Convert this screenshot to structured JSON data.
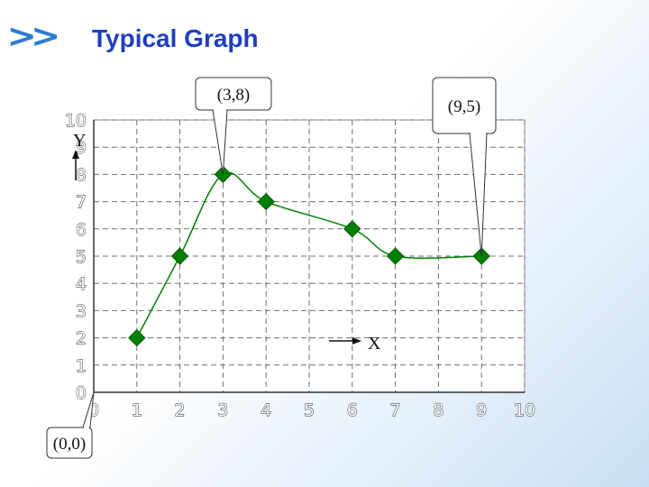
{
  "slide": {
    "marker": ">>",
    "title": "Typical Graph"
  },
  "chart_data": {
    "type": "line",
    "title": "Typical Graph",
    "xlim": [
      0,
      10
    ],
    "ylim": [
      0,
      10
    ],
    "x_ticks": [
      0,
      1,
      2,
      3,
      4,
      5,
      6,
      7,
      8,
      9,
      10
    ],
    "y_ticks": [
      0,
      1,
      2,
      3,
      4,
      5,
      6,
      7,
      8,
      9,
      10
    ],
    "grid": true,
    "grid_style": "dashed",
    "smooth": true,
    "series": [
      {
        "x": [
          1,
          2,
          3,
          4,
          6,
          7,
          9
        ],
        "y": [
          2,
          5,
          8,
          7,
          6,
          5,
          5
        ],
        "color": "#008000",
        "marker": "diamond"
      }
    ],
    "axis_labels": {
      "x": "X",
      "y": "Y"
    },
    "callouts": [
      {
        "text": "(3,8)",
        "x": 3,
        "y": 8
      },
      {
        "text": "(9,5)",
        "x": 9,
        "y": 5
      },
      {
        "text": "(0,0)",
        "x": 0,
        "y": 0
      }
    ]
  }
}
